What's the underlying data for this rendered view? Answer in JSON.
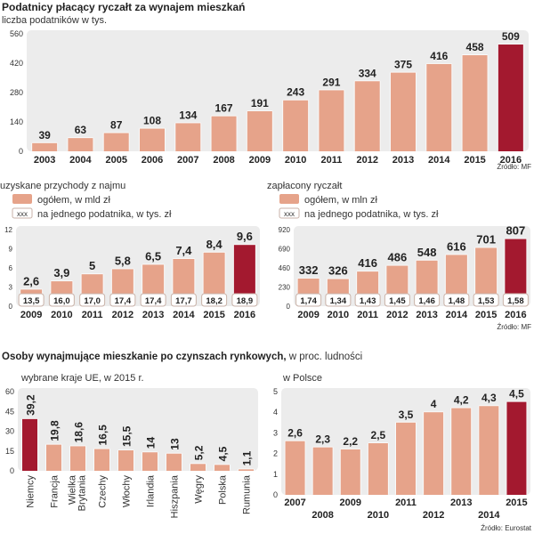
{
  "colors": {
    "bar": "#e6a38a",
    "highlight": "#a3192f",
    "plot_bg": "#ececec",
    "box_border": "#c9b2a8"
  },
  "sources": {
    "mf": "Źródło: MF",
    "eurostat": "Źródło: Eurostat"
  },
  "chart_data": [
    {
      "type": "bar",
      "title": "Podatnicy płacący ryczałt za wynajem mieszkań",
      "subtitle": "liczba podatników w tys.",
      "categories": [
        "2003",
        "2004",
        "2005",
        "2006",
        "2007",
        "2008",
        "2009",
        "2010",
        "2011",
        "2012",
        "2013",
        "2014",
        "2015",
        "2016"
      ],
      "values": [
        39,
        63,
        87,
        108,
        134,
        167,
        191,
        243,
        291,
        334,
        375,
        416,
        458,
        509
      ],
      "value_labels": [
        "39",
        "63",
        "87",
        "108",
        "134",
        "167",
        "191",
        "243",
        "291",
        "334",
        "375",
        "416",
        "458",
        "509"
      ],
      "yticks": [
        "0",
        "140",
        "280",
        "420",
        "560"
      ],
      "ylim": [
        0,
        560
      ],
      "highlight": "2016"
    },
    {
      "type": "bar",
      "title": "uzyskane przychody z najmu",
      "legend": [
        {
          "label": "ogółem, w mld zł"
        },
        {
          "box": "xxx",
          "label": "na jednego podatnika, w tys. zł"
        }
      ],
      "categories": [
        "2009",
        "2010",
        "2011",
        "2012",
        "2013",
        "2014",
        "2015",
        "2016"
      ],
      "values": [
        2.6,
        3.9,
        5,
        5.8,
        6.5,
        7.4,
        8.4,
        9.6
      ],
      "value_labels": [
        "2,6",
        "3,9",
        "5",
        "5,8",
        "6,5",
        "7,4",
        "8,4",
        "9,6"
      ],
      "per_taxpayer": [
        "13,5",
        "16,0",
        "17,0",
        "17,4",
        "17,4",
        "17,7",
        "18,2",
        "18,9"
      ],
      "yticks": [
        "0",
        "3",
        "6",
        "9",
        "12"
      ],
      "ylim": [
        0,
        12
      ],
      "highlight": "2016"
    },
    {
      "type": "bar",
      "title": "zapłacony ryczałt",
      "legend": [
        {
          "label": "ogółem, w mln zł"
        },
        {
          "box": "xxx",
          "label": "na jednego podatnika, w tys. zł"
        }
      ],
      "categories": [
        "2009",
        "2010",
        "2011",
        "2012",
        "2013",
        "2014",
        "2015",
        "2016"
      ],
      "values": [
        332,
        326,
        416,
        486,
        548,
        616,
        701,
        807
      ],
      "value_labels": [
        "332",
        "326",
        "416",
        "486",
        "548",
        "616",
        "701",
        "807"
      ],
      "per_taxpayer": [
        "1,74",
        "1,34",
        "1,43",
        "1,45",
        "1,46",
        "1,48",
        "1,53",
        "1,58"
      ],
      "yticks": [
        "0",
        "230",
        "460",
        "690",
        "920"
      ],
      "ylim": [
        0,
        920
      ],
      "highlight": "2016"
    },
    {
      "type": "bar",
      "title_bold": "Osoby wynajmujące mieszkanie po czynszach rynkowych,",
      "title_rest": " w proc. ludności",
      "subtitle": "wybrane kraje UE, w 2015 r.",
      "categories": [
        "Niemcy",
        "Francja",
        "Wielka Brytania",
        "Czechy",
        "Włochy",
        "Irlandia",
        "Hiszpania",
        "Węgry",
        "Polska",
        "Rumunia"
      ],
      "values": [
        39.2,
        19.8,
        18.6,
        16.5,
        15.5,
        14,
        13,
        5.2,
        4.5,
        1.1
      ],
      "value_labels": [
        "39,2",
        "19,8",
        "18,6",
        "16,5",
        "15,5",
        "14",
        "13",
        "5,2",
        "4,5",
        "1,1"
      ],
      "yticks": [
        "0",
        "15",
        "30",
        "45",
        "60"
      ],
      "ylim": [
        0,
        60
      ],
      "highlight": "Niemcy"
    },
    {
      "type": "bar",
      "subtitle": "w Polsce",
      "categories": [
        "2007",
        "2008",
        "2009",
        "2010",
        "2011",
        "2012",
        "2013",
        "2014",
        "2015"
      ],
      "values": [
        2.6,
        2.3,
        2.2,
        2.5,
        3.5,
        4,
        4.2,
        4.3,
        4.5
      ],
      "value_labels": [
        "2,6",
        "2,3",
        "2,2",
        "2,5",
        "3,5",
        "4",
        "4,2",
        "4,3",
        "4,5"
      ],
      "yticks": [
        "0",
        "1",
        "2",
        "3",
        "4",
        "5"
      ],
      "ylim": [
        0,
        5
      ],
      "highlight": "2015"
    }
  ]
}
